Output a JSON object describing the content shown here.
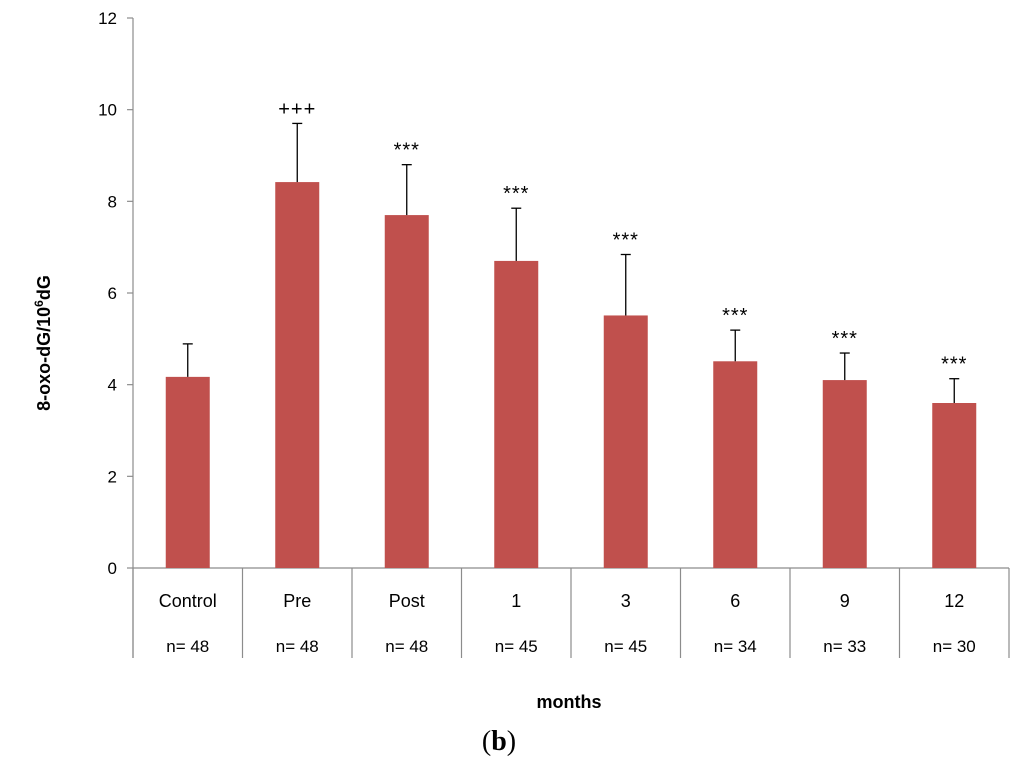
{
  "chart_data": {
    "type": "bar",
    "categories": [
      "Control",
      "Pre",
      "Post",
      "1",
      "3",
      "6",
      "9",
      "12"
    ],
    "sample_sizes": [
      "n= 48",
      "n= 48",
      "n= 48",
      "n= 45",
      "n= 45",
      "n= 34",
      "n= 33",
      "n= 30"
    ],
    "values": [
      4.17,
      8.42,
      7.7,
      6.7,
      5.51,
      4.51,
      4.1,
      3.6
    ],
    "error_upper": [
      0.72,
      1.28,
      1.1,
      1.15,
      1.33,
      0.68,
      0.59,
      0.53
    ],
    "significance": [
      "",
      "+++",
      "***",
      "***",
      "***",
      "***",
      "***",
      "***"
    ],
    "xlabel": "months",
    "ylabel_parts": {
      "base": "8-oxo-dG/10",
      "sup": "6",
      "tail": "dG"
    },
    "ylim": [
      0,
      12
    ],
    "yticks": [
      0,
      2,
      4,
      6,
      8,
      10,
      12
    ],
    "grid": false,
    "bar_color": "#c0504d",
    "panel_label": {
      "open": "(",
      "letter": "b",
      "close": ")"
    }
  }
}
